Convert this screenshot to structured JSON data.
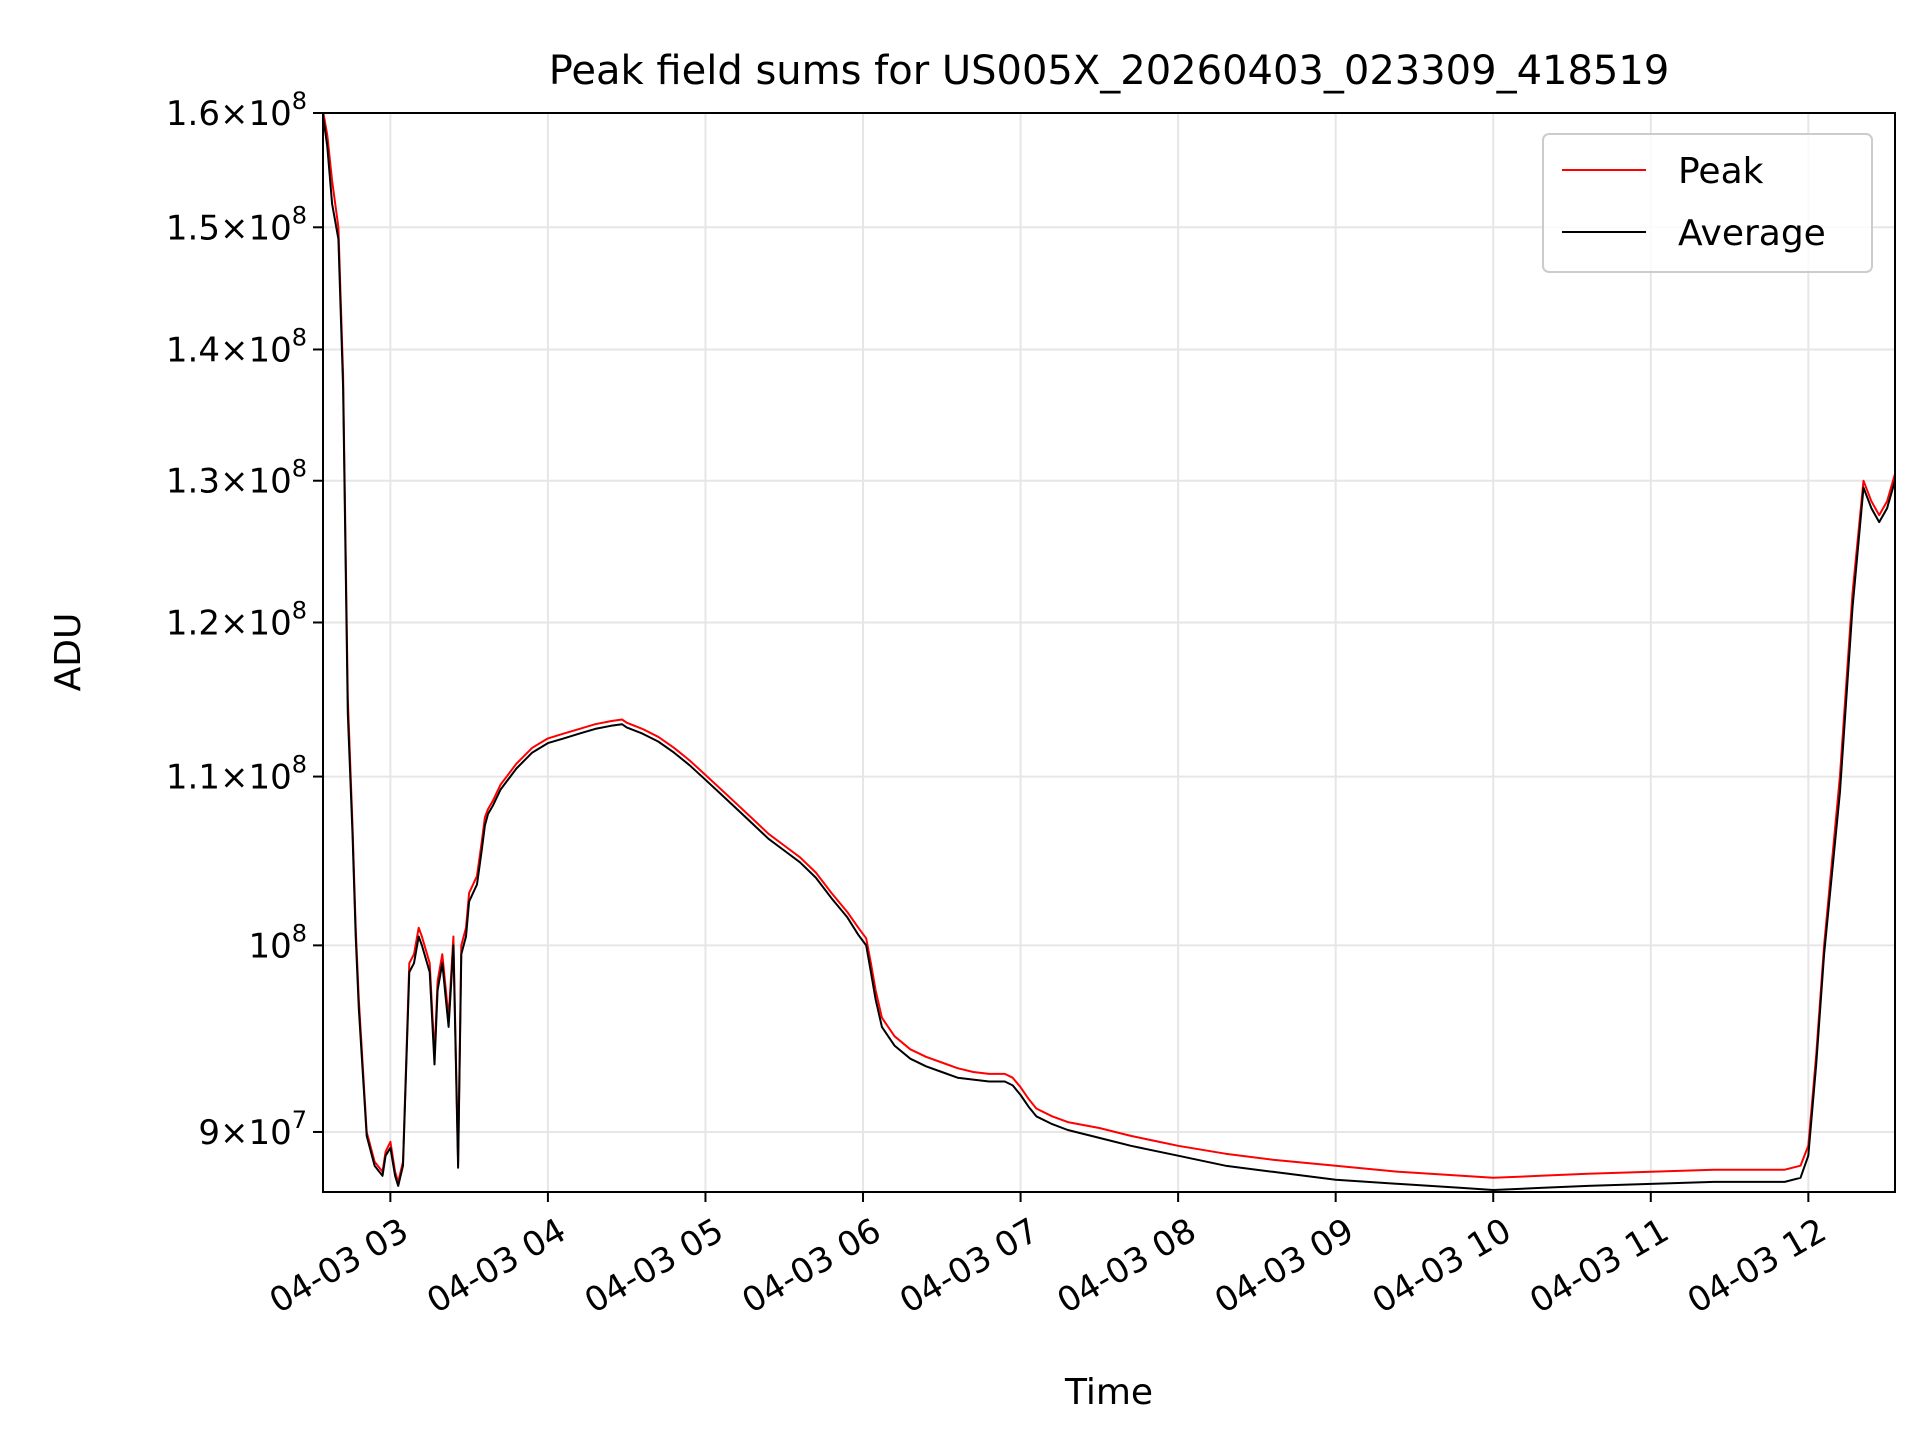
{
  "chart_data": {
    "type": "line",
    "title": "Peak field sums for US005X_20260403_023309_418519",
    "xlabel": "Time",
    "ylabel": "ADU",
    "x_unit": "hours",
    "xlim": [
      2.5725,
      12.55
    ],
    "ylim": [
      87000000,
      160000000
    ],
    "y_scale": "log",
    "grid": true,
    "legend": "top-right",
    "x_ticks": [
      {
        "value": 3,
        "label": "04-03 03"
      },
      {
        "value": 4,
        "label": "04-03 04"
      },
      {
        "value": 5,
        "label": "04-03 05"
      },
      {
        "value": 6,
        "label": "04-03 06"
      },
      {
        "value": 7,
        "label": "04-03 07"
      },
      {
        "value": 8,
        "label": "04-03 08"
      },
      {
        "value": 9,
        "label": "04-03 09"
      },
      {
        "value": 10,
        "label": "04-03 10"
      },
      {
        "value": 11,
        "label": "04-03 11"
      },
      {
        "value": 12,
        "label": "04-03 12"
      }
    ],
    "y_ticks": [
      {
        "value": 90000000,
        "mant": "9",
        "exp": "7"
      },
      {
        "value": 100000000,
        "mant": "",
        "exp": "8"
      },
      {
        "value": 110000000,
        "mant": "1.1",
        "exp": "8"
      },
      {
        "value": 120000000,
        "mant": "1.2",
        "exp": "8"
      },
      {
        "value": 130000000,
        "mant": "1.3",
        "exp": "8"
      },
      {
        "value": 140000000,
        "mant": "1.4",
        "exp": "8"
      },
      {
        "value": 150000000,
        "mant": "1.5",
        "exp": "8"
      },
      {
        "value": 160000000,
        "mant": "1.6",
        "exp": "8"
      }
    ],
    "series": [
      {
        "name": "Peak",
        "color": "#ff0000",
        "x": [
          2.575,
          2.6,
          2.63,
          2.67,
          2.7,
          2.73,
          2.76,
          2.78,
          2.8,
          2.85,
          2.9,
          2.95,
          2.97,
          3.0,
          3.03,
          3.05,
          3.08,
          3.12,
          3.15,
          3.18,
          3.2,
          3.25,
          3.28,
          3.3,
          3.33,
          3.37,
          3.4,
          3.43,
          3.45,
          3.48,
          3.5,
          3.55,
          3.58,
          3.6,
          3.62,
          3.65,
          3.7,
          3.8,
          3.9,
          4.0,
          4.1,
          4.2,
          4.3,
          4.4,
          4.47,
          4.5,
          4.6,
          4.7,
          4.8,
          4.9,
          5.0,
          5.1,
          5.2,
          5.3,
          5.4,
          5.5,
          5.6,
          5.7,
          5.8,
          5.9,
          5.97,
          6.02,
          6.05,
          6.08,
          6.12,
          6.2,
          6.3,
          6.4,
          6.5,
          6.6,
          6.7,
          6.8,
          6.9,
          6.95,
          7.0,
          7.05,
          7.1,
          7.2,
          7.3,
          7.5,
          7.7,
          8.0,
          8.3,
          8.6,
          9.0,
          9.4,
          9.8,
          10.0,
          10.3,
          10.6,
          11.0,
          11.4,
          11.7,
          11.85,
          11.95,
          12.0,
          12.05,
          12.1,
          12.2,
          12.28,
          12.35,
          12.4,
          12.45,
          12.5,
          12.55
        ],
        "values": [
          160000000,
          158000000,
          154000000,
          150000000,
          138000000,
          115000000,
          107000000,
          101000000,
          97000000,
          90000000,
          88500000,
          88000000,
          89000000,
          89500000,
          88000000,
          87500000,
          88500000,
          99000000,
          99500000,
          101000000,
          100500000,
          99000000,
          94000000,
          98000000,
          99500000,
          96000000,
          100500000,
          88500000,
          100000000,
          101000000,
          103000000,
          104000000,
          106000000,
          107500000,
          108000000,
          108500000,
          109500000,
          110800000,
          111800000,
          112400000,
          112700000,
          113000000,
          113300000,
          113500000,
          113600000,
          113400000,
          113000000,
          112500000,
          111800000,
          111000000,
          110100000,
          109200000,
          108300000,
          107400000,
          106500000,
          105800000,
          105100000,
          104200000,
          103000000,
          101900000,
          101000000,
          100400000,
          99000000,
          97500000,
          96000000,
          95000000,
          94300000,
          93900000,
          93600000,
          93300000,
          93100000,
          93000000,
          93000000,
          92800000,
          92300000,
          91700000,
          91200000,
          90800000,
          90500000,
          90200000,
          89800000,
          89300000,
          88900000,
          88600000,
          88300000,
          88000000,
          87800000,
          87700000,
          87800000,
          87900000,
          88000000,
          88100000,
          88100000,
          88100000,
          88300000,
          89300000,
          94000000,
          100000000,
          110000000,
          122000000,
          130000000,
          128500000,
          127500000,
          128500000,
          130500000
        ]
      },
      {
        "name": "Average",
        "color": "#000000",
        "x": [
          2.575,
          2.6,
          2.63,
          2.67,
          2.7,
          2.73,
          2.76,
          2.78,
          2.8,
          2.85,
          2.9,
          2.95,
          2.97,
          3.0,
          3.03,
          3.05,
          3.08,
          3.12,
          3.15,
          3.18,
          3.2,
          3.25,
          3.28,
          3.3,
          3.33,
          3.37,
          3.4,
          3.43,
          3.45,
          3.48,
          3.5,
          3.55,
          3.58,
          3.6,
          3.62,
          3.65,
          3.7,
          3.8,
          3.9,
          4.0,
          4.1,
          4.2,
          4.3,
          4.4,
          4.47,
          4.5,
          4.6,
          4.7,
          4.8,
          4.9,
          5.0,
          5.1,
          5.2,
          5.3,
          5.4,
          5.5,
          5.6,
          5.7,
          5.8,
          5.9,
          5.97,
          6.02,
          6.05,
          6.08,
          6.12,
          6.2,
          6.3,
          6.4,
          6.5,
          6.6,
          6.7,
          6.8,
          6.9,
          6.95,
          7.0,
          7.05,
          7.1,
          7.2,
          7.3,
          7.5,
          7.7,
          8.0,
          8.3,
          8.6,
          9.0,
          9.4,
          9.8,
          10.0,
          10.3,
          10.6,
          11.0,
          11.4,
          11.7,
          11.85,
          11.95,
          12.0,
          12.05,
          12.1,
          12.2,
          12.28,
          12.35,
          12.4,
          12.45,
          12.5,
          12.55
        ],
        "values": [
          159500000,
          157000000,
          152000000,
          149000000,
          137000000,
          114000000,
          106500000,
          100500000,
          96500000,
          89800000,
          88300000,
          87800000,
          88800000,
          89200000,
          87800000,
          87300000,
          88300000,
          98500000,
          99000000,
          100500000,
          100000000,
          98500000,
          93500000,
          97500000,
          99000000,
          95500000,
          100000000,
          88200000,
          99500000,
          100500000,
          102500000,
          103500000,
          105500000,
          107000000,
          107700000,
          108200000,
          109200000,
          110500000,
          111500000,
          112100000,
          112400000,
          112700000,
          113000000,
          113200000,
          113300000,
          113100000,
          112700000,
          112200000,
          111500000,
          110700000,
          109800000,
          108900000,
          108000000,
          107100000,
          106200000,
          105500000,
          104800000,
          103900000,
          102700000,
          101600000,
          100600000,
          100000000,
          98500000,
          97000000,
          95500000,
          94500000,
          93800000,
          93400000,
          93100000,
          92800000,
          92700000,
          92600000,
          92600000,
          92400000,
          91900000,
          91300000,
          90800000,
          90400000,
          90100000,
          89700000,
          89300000,
          88800000,
          88300000,
          88000000,
          87600000,
          87400000,
          87200000,
          87100000,
          87200000,
          87300000,
          87400000,
          87500000,
          87500000,
          87500000,
          87700000,
          88800000,
          93500000,
          99500000,
          109000000,
          121000000,
          129500000,
          128000000,
          127000000,
          128000000,
          130000000
        ]
      }
    ]
  }
}
